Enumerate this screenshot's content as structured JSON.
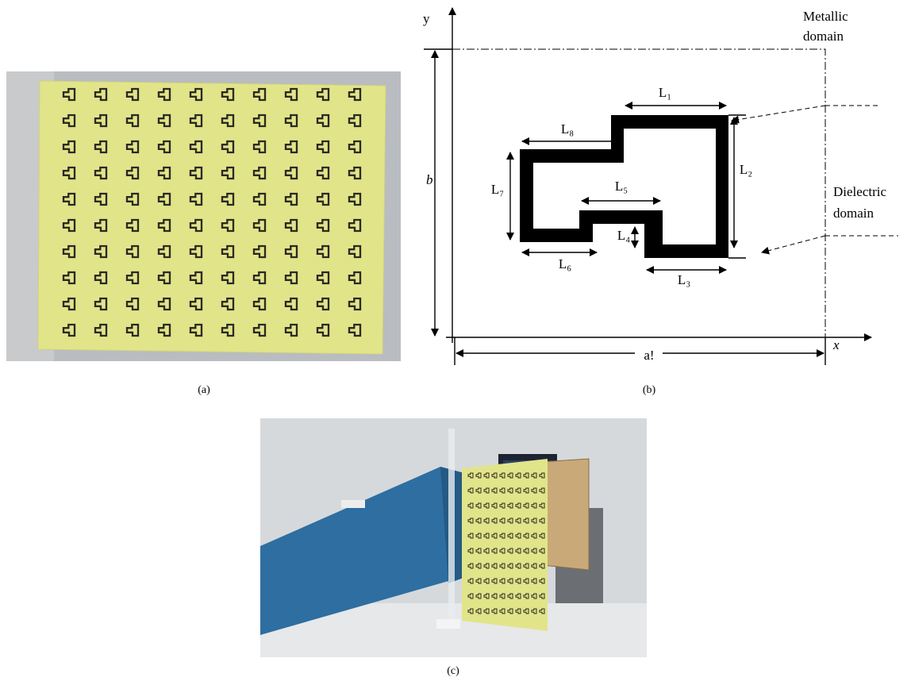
{
  "panels": [
    {
      "label": "(a)"
    },
    {
      "label": "(b)"
    },
    {
      "label": "(c)"
    }
  ],
  "diagram": {
    "axis_x": "x",
    "axis_y": "y",
    "width_label": "a!",
    "height_label": "b",
    "dimensions": [
      "L₁",
      "L₂",
      "L₃",
      "L₄",
      "L₅",
      "L₆",
      "L₇",
      "L₈"
    ],
    "annotations": [
      [
        "Metallic",
        "domain"
      ],
      [
        "Dielectric",
        "domain"
      ]
    ]
  }
}
